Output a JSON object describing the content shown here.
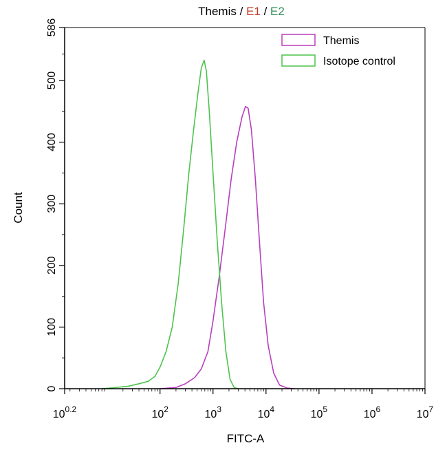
{
  "chart_data": {
    "type": "line",
    "title_parts": [
      {
        "text": "Themis ",
        "color": "#000000"
      },
      {
        "text": "/",
        "color": "#000000"
      },
      {
        "text": " E1 ",
        "color": "#c0392b"
      },
      {
        "text": "/",
        "color": "#000000"
      },
      {
        "text": " E2",
        "color": "#2e8b57"
      }
    ],
    "xlabel": "FITC-A",
    "ylabel": "Count",
    "x_scale": "log",
    "xlim": [
      1.585,
      10000000
    ],
    "ylim": [
      0,
      586
    ],
    "y_ticks": [
      0,
      100,
      200,
      300,
      400,
      500,
      586
    ],
    "x_ticks": [
      {
        "value": 1.585,
        "base": "10",
        "exp": "0.2"
      },
      {
        "value": 100,
        "base": "10",
        "exp": "2"
      },
      {
        "value": 1000,
        "base": "10",
        "exp": "3"
      },
      {
        "value": 10000,
        "base": "10",
        "exp": "4"
      },
      {
        "value": 100000,
        "base": "10",
        "exp": "5"
      },
      {
        "value": 1000000,
        "base": "10",
        "exp": "6"
      },
      {
        "value": 10000000,
        "base": "10",
        "exp": "7"
      }
    ],
    "legend_position": "top-right",
    "series": [
      {
        "name": "Themis",
        "color": "#b83fbf",
        "points": [
          [
            100,
            0
          ],
          [
            200,
            2
          ],
          [
            300,
            8
          ],
          [
            450,
            18
          ],
          [
            600,
            32
          ],
          [
            800,
            60
          ],
          [
            1000,
            110
          ],
          [
            1300,
            180
          ],
          [
            1700,
            260
          ],
          [
            2200,
            340
          ],
          [
            2800,
            400
          ],
          [
            3500,
            440
          ],
          [
            4100,
            458
          ],
          [
            4600,
            455
          ],
          [
            5300,
            420
          ],
          [
            6300,
            340
          ],
          [
            7500,
            240
          ],
          [
            9000,
            140
          ],
          [
            11000,
            70
          ],
          [
            14000,
            25
          ],
          [
            18000,
            6
          ],
          [
            25000,
            1
          ],
          [
            35000,
            0
          ]
        ]
      },
      {
        "name": "Isotope control",
        "color": "#4cc44c",
        "points": [
          [
            8,
            0
          ],
          [
            15,
            2
          ],
          [
            25,
            4
          ],
          [
            40,
            8
          ],
          [
            60,
            12
          ],
          [
            80,
            20
          ],
          [
            100,
            35
          ],
          [
            130,
            60
          ],
          [
            170,
            100
          ],
          [
            220,
            170
          ],
          [
            280,
            260
          ],
          [
            350,
            350
          ],
          [
            430,
            420
          ],
          [
            520,
            480
          ],
          [
            600,
            520
          ],
          [
            680,
            533
          ],
          [
            750,
            515
          ],
          [
            850,
            450
          ],
          [
            1000,
            350
          ],
          [
            1200,
            240
          ],
          [
            1450,
            140
          ],
          [
            1750,
            60
          ],
          [
            2100,
            15
          ],
          [
            2500,
            2
          ],
          [
            3000,
            0
          ]
        ]
      }
    ]
  }
}
